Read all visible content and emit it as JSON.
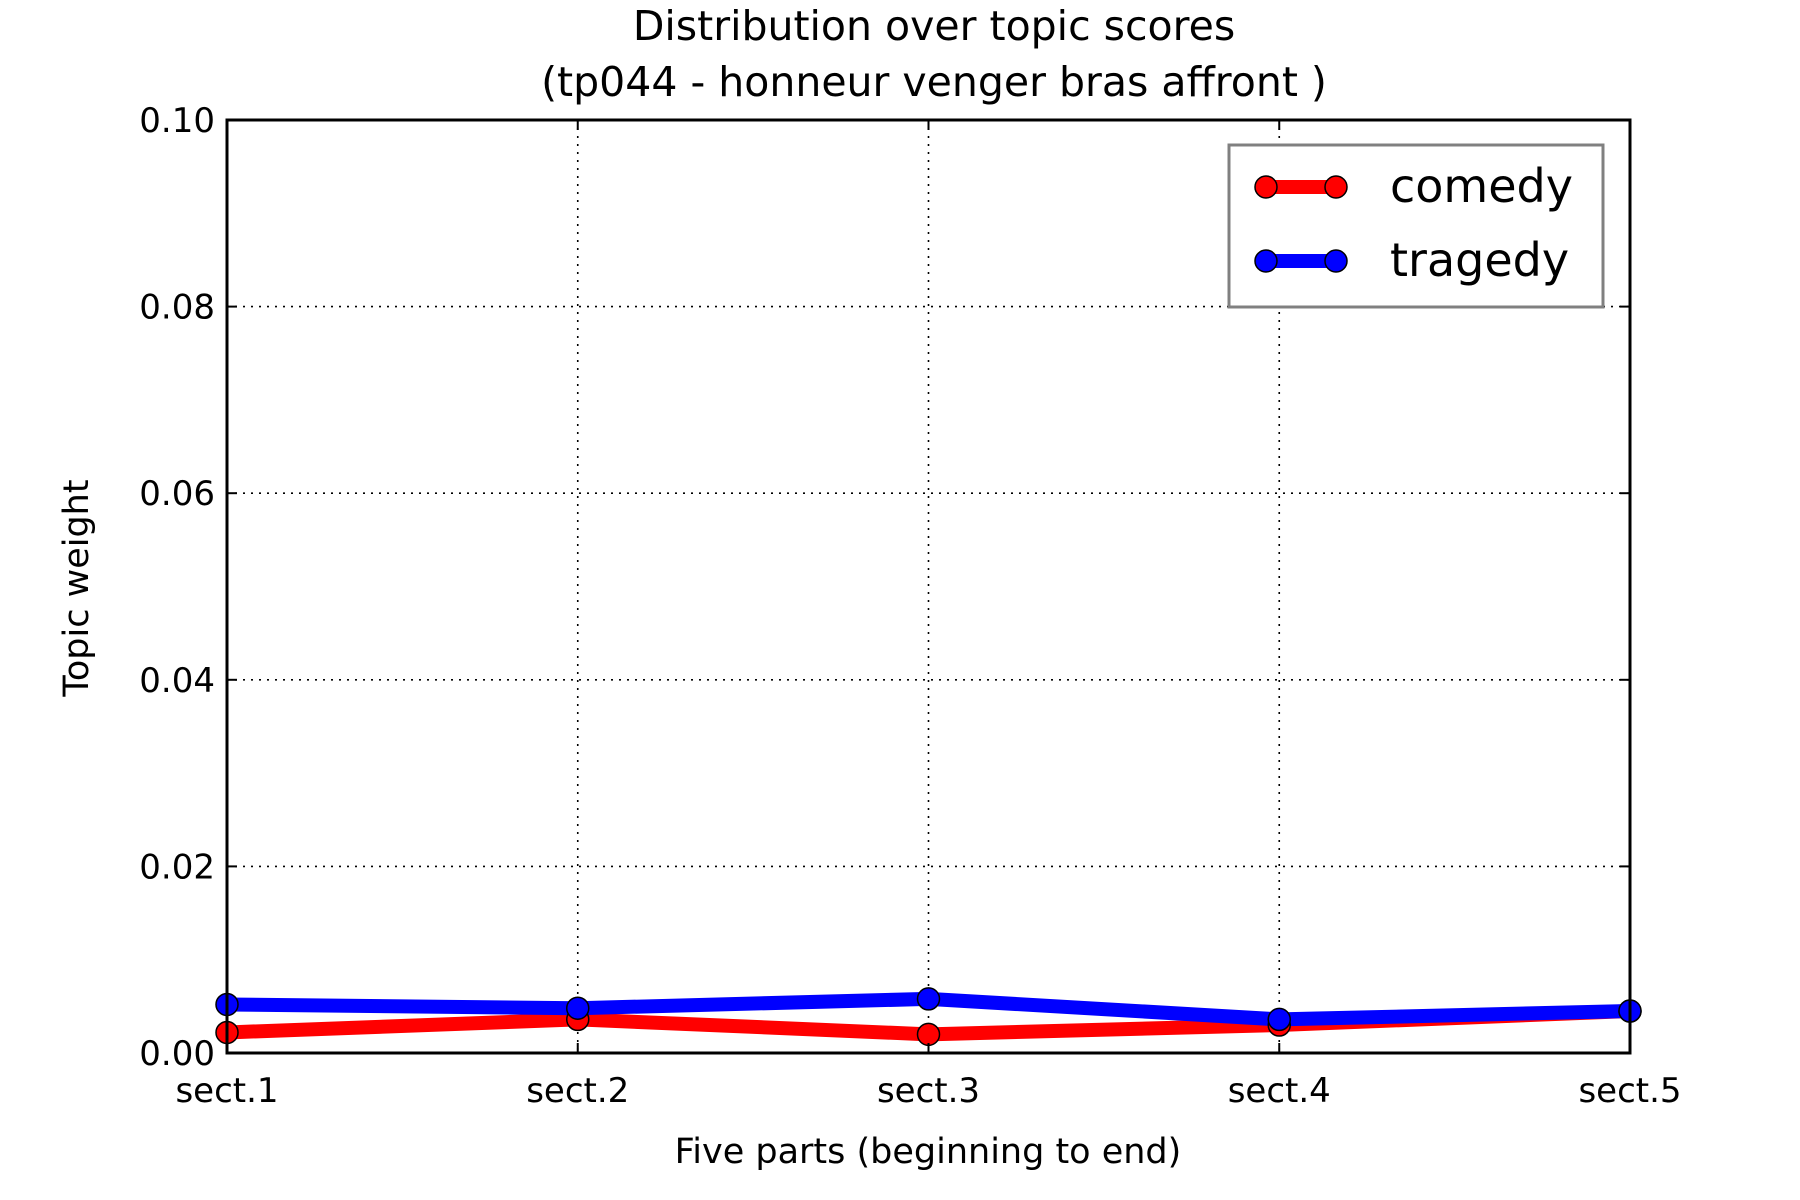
{
  "chart_data": {
    "type": "line",
    "title": "Distribution over topic scores",
    "subtitle": "(tp044 - honneur venger bras affront )",
    "xlabel": "Five parts (beginning to end)",
    "ylabel": "Topic weight",
    "categories": [
      "sect.1",
      "sect.2",
      "sect.3",
      "sect.4",
      "sect.5"
    ],
    "ylim": [
      0,
      0.1
    ],
    "yticks": [
      "0.00",
      "0.02",
      "0.04",
      "0.06",
      "0.08",
      "0.10"
    ],
    "grid": true,
    "legend_position": "top-right",
    "series": [
      {
        "name": "comedy",
        "color": "#ff0000",
        "values": [
          0.0022,
          0.0036,
          0.002,
          0.003,
          0.0045
        ]
      },
      {
        "name": "tragedy",
        "color": "#0000ff",
        "values": [
          0.0052,
          0.0048,
          0.0058,
          0.0036,
          0.0045
        ]
      }
    ]
  }
}
